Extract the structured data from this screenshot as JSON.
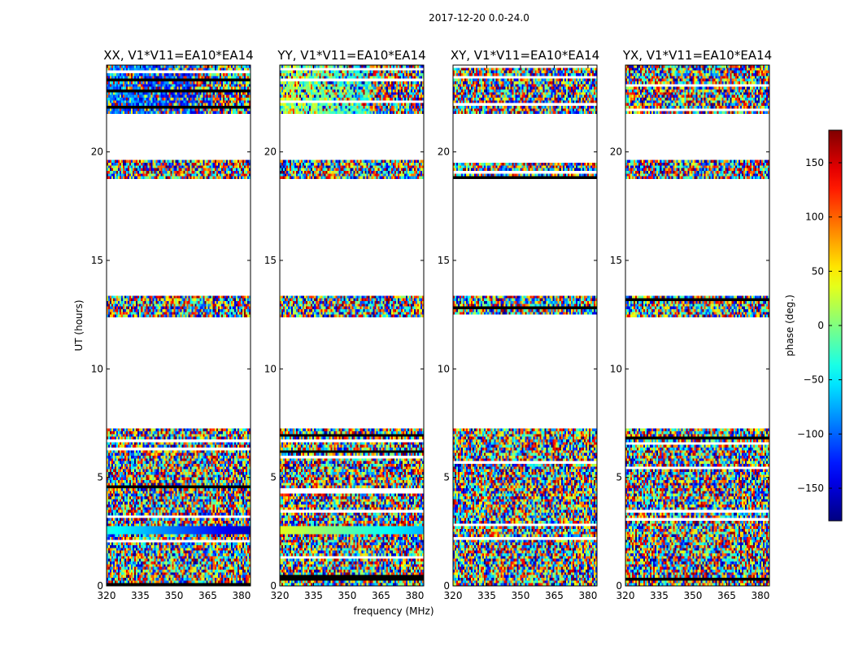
{
  "figure": {
    "suptitle": "2017-12-20 0.0-24.0",
    "xlabel": "frequency (MHz)",
    "ylabel": "UT (hours)"
  },
  "chart_data": {
    "type": "heatmap",
    "title": "2017-12-20 0.0-24.0",
    "xlabel": "frequency (MHz)",
    "ylabel": "UT (hours)",
    "xlim": [
      320,
      384
    ],
    "ylim": [
      0,
      24
    ],
    "xticks": [
      320,
      335,
      350,
      365,
      380
    ],
    "yticks": [
      0,
      5,
      10,
      15,
      20
    ],
    "panels": [
      {
        "name": "XX",
        "title": "XX, V1*V11=EA10*EA14",
        "structured": true
      },
      {
        "name": "YY",
        "title": "YY, V1*V11=EA10*EA14",
        "structured": true
      },
      {
        "name": "XY",
        "title": "XY, V1*V11=EA10*EA14",
        "structured": false
      },
      {
        "name": "YX",
        "title": "YX, V1*V11=EA10*EA14",
        "structured": false
      }
    ],
    "data_time_ranges_hours": [
      [
        0.0,
        7.3
      ],
      [
        12.4,
        13.4
      ],
      [
        18.7,
        19.6
      ],
      [
        21.8,
        24.0
      ]
    ],
    "colorbar": {
      "label": "phase (deg.)",
      "range": [
        -180,
        180
      ],
      "ticks": [
        -150,
        -100,
        -50,
        0,
        50,
        100,
        150
      ],
      "tick_labels": [
        "−150",
        "−100",
        "−50",
        "0",
        "50",
        "100",
        "150"
      ],
      "colormap": "jet"
    }
  }
}
